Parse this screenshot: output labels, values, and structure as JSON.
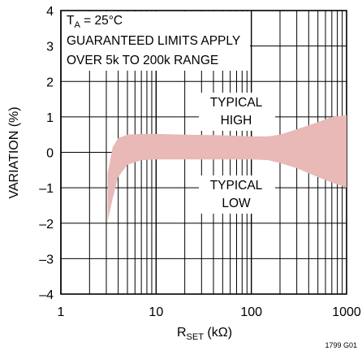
{
  "chart_data": {
    "type": "area",
    "xscale": "log",
    "xlim": [
      1,
      1000
    ],
    "ylim": [
      -4,
      4
    ],
    "grid": true,
    "xlabel_main": "R",
    "xlabel_sub": "SET",
    "xlabel_unit": " (kΩ)",
    "ylabel": "VARIATION (%)",
    "x_tick_labels": [
      {
        "value": 1,
        "label": "1"
      },
      {
        "value": 10,
        "label": "10"
      },
      {
        "value": 100,
        "label": "100"
      },
      {
        "value": 1000,
        "label": "1000"
      }
    ],
    "y_tick_labels": [
      {
        "value": 4,
        "label": "4"
      },
      {
        "value": 3,
        "label": "3"
      },
      {
        "value": 2,
        "label": "2"
      },
      {
        "value": 1,
        "label": "1"
      },
      {
        "value": 0,
        "label": "0"
      },
      {
        "value": -1,
        "label": "–1"
      },
      {
        "value": -2,
        "label": "–2"
      },
      {
        "value": -3,
        "label": "–3"
      },
      {
        "value": -4,
        "label": "–4"
      }
    ],
    "band_color": "#e8b9b6",
    "typical_high": {
      "x": [
        3.1,
        3.5,
        4,
        5,
        7,
        10,
        20,
        50,
        100,
        150,
        200,
        300,
        500,
        700,
        1000
      ],
      "y": [
        -0.6,
        0.15,
        0.4,
        0.5,
        0.52,
        0.52,
        0.5,
        0.48,
        0.45,
        0.45,
        0.5,
        0.65,
        0.85,
        1.0,
        1.05
      ]
    },
    "typical_low": {
      "x": [
        3.1,
        3.5,
        4,
        5,
        7,
        10,
        20,
        50,
        100,
        150,
        200,
        300,
        500,
        700,
        1000
      ],
      "y": [
        -1.95,
        -1.3,
        -0.7,
        -0.35,
        -0.22,
        -0.2,
        -0.2,
        -0.2,
        -0.2,
        -0.22,
        -0.3,
        -0.45,
        -0.7,
        -0.85,
        -1.0
      ]
    },
    "annotations": {
      "ta_main": "T",
      "ta_sub": "A",
      "ta_rest": " = 25°C",
      "line2": "GUARANTEED LIMITS APPLY",
      "line3": "OVER 5k TO 200k RANGE",
      "high_line1": "TYPICAL",
      "high_line2": "HIGH",
      "low_line1": "TYPICAL",
      "low_line2": "LOW"
    },
    "figure_id": "1799 G01"
  }
}
